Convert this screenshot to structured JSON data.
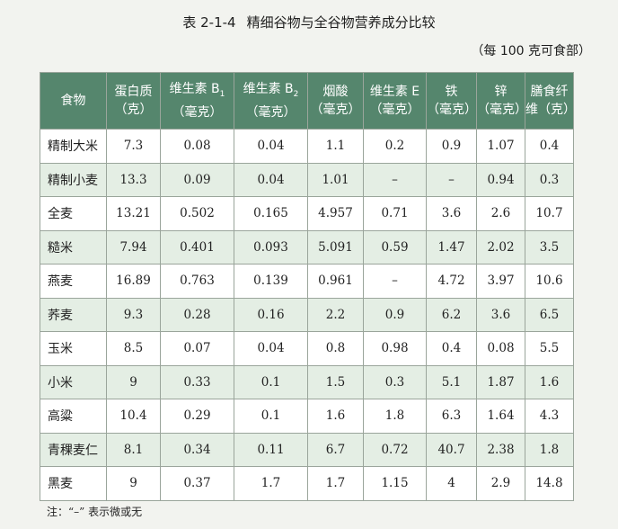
{
  "title": {
    "number": "表 2-1-4",
    "text": "精细谷物与全谷物营养成分比较"
  },
  "unit_note": "（每 100 克可食部）",
  "columns": [
    {
      "l1": "食物",
      "l2": ""
    },
    {
      "l1": "蛋白质",
      "l2": "（克）"
    },
    {
      "l1": "维生素 B",
      "sub": "1",
      "l2": "（毫克）"
    },
    {
      "l1": "维生素 B",
      "sub": "2",
      "l2": "（毫克）"
    },
    {
      "l1": "烟酸",
      "l2": "（毫克）"
    },
    {
      "l1": "维生素 E",
      "l2": "（毫克）"
    },
    {
      "l1": "铁",
      "l2": "（毫克）"
    },
    {
      "l1": "锌",
      "l2": "（毫克）"
    },
    {
      "l1": "膳食纤",
      "l2": "维（克）"
    }
  ],
  "rows": [
    {
      "food": "精制大米",
      "values": [
        "7.3",
        "0.08",
        "0.04",
        "1.1",
        "0.2",
        "0.9",
        "1.07",
        "0.4"
      ]
    },
    {
      "food": "精制小麦",
      "values": [
        "13.3",
        "0.09",
        "0.04",
        "1.01",
        "–",
        "–",
        "0.94",
        "0.3"
      ]
    },
    {
      "food": "全麦",
      "values": [
        "13.21",
        "0.502",
        "0.165",
        "4.957",
        "0.71",
        "3.6",
        "2.6",
        "10.7"
      ]
    },
    {
      "food": "糙米",
      "values": [
        "7.94",
        "0.401",
        "0.093",
        "5.091",
        "0.59",
        "1.47",
        "2.02",
        "3.5"
      ]
    },
    {
      "food": "燕麦",
      "values": [
        "16.89",
        "0.763",
        "0.139",
        "0.961",
        "–",
        "4.72",
        "3.97",
        "10.6"
      ]
    },
    {
      "food": "荞麦",
      "values": [
        "9.3",
        "0.28",
        "0.16",
        "2.2",
        "0.9",
        "6.2",
        "3.6",
        "6.5"
      ]
    },
    {
      "food": "玉米",
      "values": [
        "8.5",
        "0.07",
        "0.04",
        "0.8",
        "0.98",
        "0.4",
        "0.08",
        "5.5"
      ]
    },
    {
      "food": "小米",
      "values": [
        "9",
        "0.33",
        "0.1",
        "1.5",
        "0.3",
        "5.1",
        "1.87",
        "1.6"
      ]
    },
    {
      "food": "高粱",
      "values": [
        "10.4",
        "0.29",
        "0.1",
        "1.6",
        "1.8",
        "6.3",
        "1.64",
        "4.3"
      ]
    },
    {
      "food": "青稞麦仁",
      "values": [
        "8.1",
        "0.34",
        "0.11",
        "6.7",
        "0.72",
        "40.7",
        "2.38",
        "1.8"
      ]
    },
    {
      "food": "黑麦",
      "values": [
        "9",
        "0.37",
        "1.7",
        "1.7",
        "1.15",
        "4",
        "2.9",
        "14.8"
      ]
    }
  ],
  "footnote": "注：“–” 表示微或无"
}
